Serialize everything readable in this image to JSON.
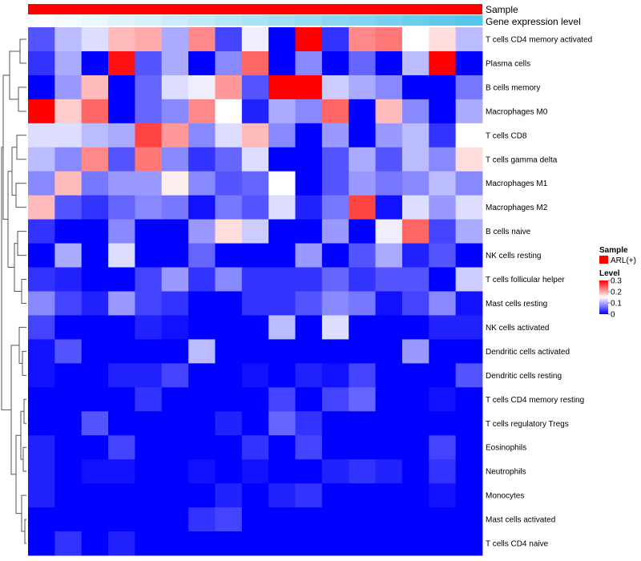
{
  "chart_data": {
    "type": "heatmap",
    "title": "",
    "annotations": {
      "sample": {
        "label": "Sample",
        "color": "#ff0000"
      },
      "expression": {
        "label": "Gene expression level",
        "colors_low_to_high": [
          "#ffffff",
          "#54c6ec"
        ]
      }
    },
    "color_scale": {
      "min": 0,
      "max": 0.3,
      "low": "#0000ff",
      "mid": "#ffffff",
      "high": "#ff0000",
      "mid_value": 0.15
    },
    "rows": [
      "T cells CD4 memory activated",
      "Plasma cells",
      "B cells memory",
      "Macrophages M0",
      "T cells CD8",
      "T cells gamma delta",
      "Macrophages M1",
      "Macrophages M2",
      "B cells naive",
      "NK cells resting",
      "T cells follicular helper",
      "Mast cells resting",
      "NK cells activated",
      "Dendritic cells activated",
      "Dendritic cells resting",
      "T cells CD4 memory resting",
      "T cells regulatory  Tregs",
      "Eosinophils",
      "Neutrophils",
      "Monocytes",
      "Mast cells activated",
      "T cells CD4 naive"
    ],
    "values": [
      [
        0.05,
        0.11,
        0.13,
        0.19,
        0.2,
        0.1,
        0.22,
        0.04,
        0.14,
        0.0,
        0.3,
        0.03,
        0.22,
        0.23,
        0.15,
        0.17,
        0.11
      ],
      [
        0.03,
        0.1,
        0.0,
        0.29,
        0.05,
        0.1,
        0.0,
        0.08,
        0.24,
        0.0,
        0.08,
        0.0,
        0.06,
        0.0,
        0.11,
        0.3,
        0.0
      ],
      [
        0.0,
        0.09,
        0.19,
        0.0,
        0.06,
        0.13,
        0.14,
        0.21,
        0.05,
        0.3,
        0.3,
        0.12,
        0.1,
        0.08,
        0.0,
        0.0,
        0.07
      ],
      [
        0.3,
        0.18,
        0.24,
        0.0,
        0.06,
        0.08,
        0.22,
        0.15,
        0.02,
        0.1,
        0.08,
        0.24,
        0.0,
        0.19,
        0.08,
        0.0,
        0.1
      ],
      [
        0.13,
        0.13,
        0.11,
        0.1,
        0.26,
        0.21,
        0.08,
        0.13,
        0.19,
        0.08,
        0.0,
        0.09,
        0.0,
        0.09,
        0.11,
        0.03,
        0.15
      ],
      [
        0.11,
        0.08,
        0.22,
        0.05,
        0.23,
        0.08,
        0.03,
        0.06,
        0.13,
        0.0,
        0.0,
        0.05,
        0.1,
        0.05,
        0.11,
        0.08,
        0.17
      ],
      [
        0.08,
        0.19,
        0.07,
        0.09,
        0.09,
        0.16,
        0.08,
        0.05,
        0.06,
        0.15,
        0.0,
        0.05,
        0.09,
        0.07,
        0.08,
        0.11,
        0.08
      ],
      [
        0.19,
        0.05,
        0.03,
        0.06,
        0.08,
        0.07,
        0.01,
        0.07,
        0.05,
        0.13,
        0.02,
        0.07,
        0.26,
        0.01,
        0.13,
        0.09,
        0.13
      ],
      [
        0.03,
        0.0,
        0.0,
        0.08,
        0.0,
        0.0,
        0.09,
        0.17,
        0.12,
        0.0,
        0.0,
        0.09,
        0.0,
        0.14,
        0.24,
        0.04,
        0.1
      ],
      [
        0.0,
        0.1,
        0.0,
        0.13,
        0.0,
        0.0,
        0.06,
        0.0,
        0.0,
        0.0,
        0.09,
        0.0,
        0.05,
        0.1,
        0.02,
        0.05,
        0.0
      ],
      [
        0.03,
        0.02,
        0.0,
        0.0,
        0.04,
        0.09,
        0.03,
        0.08,
        0.03,
        0.03,
        0.03,
        0.06,
        0.03,
        0.05,
        0.05,
        0.0,
        0.12
      ],
      [
        0.08,
        0.04,
        0.02,
        0.09,
        0.04,
        0.03,
        0.0,
        0.0,
        0.03,
        0.03,
        0.05,
        0.08,
        0.07,
        0.01,
        0.04,
        0.08,
        0.01
      ],
      [
        0.04,
        0.0,
        0.0,
        0.0,
        0.02,
        0.01,
        0.0,
        0.0,
        0.0,
        0.11,
        0.0,
        0.13,
        0.0,
        0.0,
        0.0,
        0.02,
        0.02
      ],
      [
        0.01,
        0.05,
        0.0,
        0.0,
        0.0,
        0.0,
        0.11,
        0.0,
        0.0,
        0.0,
        0.0,
        0.0,
        0.0,
        0.0,
        0.09,
        0.0,
        0.0
      ],
      [
        0.01,
        0.0,
        0.0,
        0.02,
        0.02,
        0.04,
        0.0,
        0.0,
        0.01,
        0.0,
        0.02,
        0.01,
        0.04,
        0.0,
        0.0,
        0.0,
        0.05
      ],
      [
        0.0,
        0.0,
        0.0,
        0.0,
        0.03,
        0.0,
        0.0,
        0.0,
        0.0,
        0.04,
        0.0,
        0.04,
        0.06,
        0.0,
        0.0,
        0.01,
        0.0
      ],
      [
        0.0,
        0.0,
        0.05,
        0.0,
        0.0,
        0.0,
        0.0,
        0.02,
        0.0,
        0.06,
        0.03,
        0.0,
        0.0,
        0.0,
        0.0,
        0.0,
        0.0
      ],
      [
        0.02,
        0.0,
        0.0,
        0.04,
        0.0,
        0.0,
        0.0,
        0.0,
        0.03,
        0.0,
        0.04,
        0.0,
        0.0,
        0.0,
        0.0,
        0.04,
        0.0
      ],
      [
        0.02,
        0.0,
        0.01,
        0.01,
        0.0,
        0.0,
        0.01,
        0.0,
        0.01,
        0.0,
        0.0,
        0.02,
        0.03,
        0.02,
        0.0,
        0.03,
        0.0
      ],
      [
        0.02,
        0.0,
        0.0,
        0.0,
        0.0,
        0.0,
        0.0,
        0.02,
        0.0,
        0.02,
        0.03,
        0.0,
        0.0,
        0.0,
        0.0,
        0.01,
        0.0
      ],
      [
        0.0,
        0.0,
        0.0,
        0.0,
        0.0,
        0.0,
        0.03,
        0.04,
        0.0,
        0.0,
        0.0,
        0.0,
        0.0,
        0.0,
        0.0,
        0.0,
        0.0
      ],
      [
        0.0,
        0.03,
        0.0,
        0.02,
        0.0,
        0.0,
        0.0,
        0.0,
        0.0,
        0.0,
        0.0,
        0.0,
        0.0,
        0.0,
        0.0,
        0.0,
        0.0
      ]
    ],
    "legend": {
      "sample": {
        "title": "Sample",
        "entry": "ARL(+)"
      },
      "level": {
        "title": "Level",
        "ticks": [
          "0.3",
          "0.2",
          "0.1",
          "0"
        ],
        "tick_values": [
          0.3,
          0.2,
          0.1,
          0
        ]
      }
    }
  }
}
